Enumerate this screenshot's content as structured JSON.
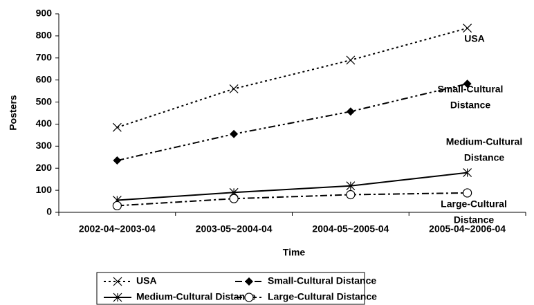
{
  "chart_data": {
    "type": "line",
    "x_label": "Time",
    "y_label": "Posters",
    "categories": [
      "2002-04~2003-04",
      "2003-05~2004-04",
      "2004-05~2005-04",
      "2005-04~2006-04"
    ],
    "series": [
      {
        "name": "USA",
        "color": "#000000",
        "dash": "3,4",
        "marker": "x",
        "values": [
          385,
          560,
          690,
          835
        ]
      },
      {
        "name": "Small-Cultural Distance",
        "color": "#000000",
        "dash": "10,4,3,4,3,4",
        "marker": "diamond",
        "values": [
          235,
          355,
          457,
          583
        ]
      },
      {
        "name": "Medium-Cultural Distance",
        "color": "#000000",
        "dash": "none",
        "marker": "asterisk",
        "values": [
          55,
          90,
          120,
          180
        ]
      },
      {
        "name": "Large-Cultural Distance",
        "color": "#000000",
        "dash": "10,4,3,4",
        "marker": "circle",
        "values": [
          30,
          62,
          80,
          88
        ]
      }
    ],
    "annotations": [
      {
        "lines": [
          "USA"
        ]
      },
      {
        "lines": [
          "Small-Cultural",
          "Distance"
        ]
      },
      {
        "lines": [
          "Medium-Cultural",
          "Distance"
        ]
      },
      {
        "lines": [
          "Large-Cultural",
          "Distance"
        ]
      }
    ],
    "ylim": [
      0,
      900
    ],
    "yticks": [
      0,
      100,
      200,
      300,
      400,
      500,
      600,
      700,
      800,
      900
    ],
    "grid": false
  }
}
